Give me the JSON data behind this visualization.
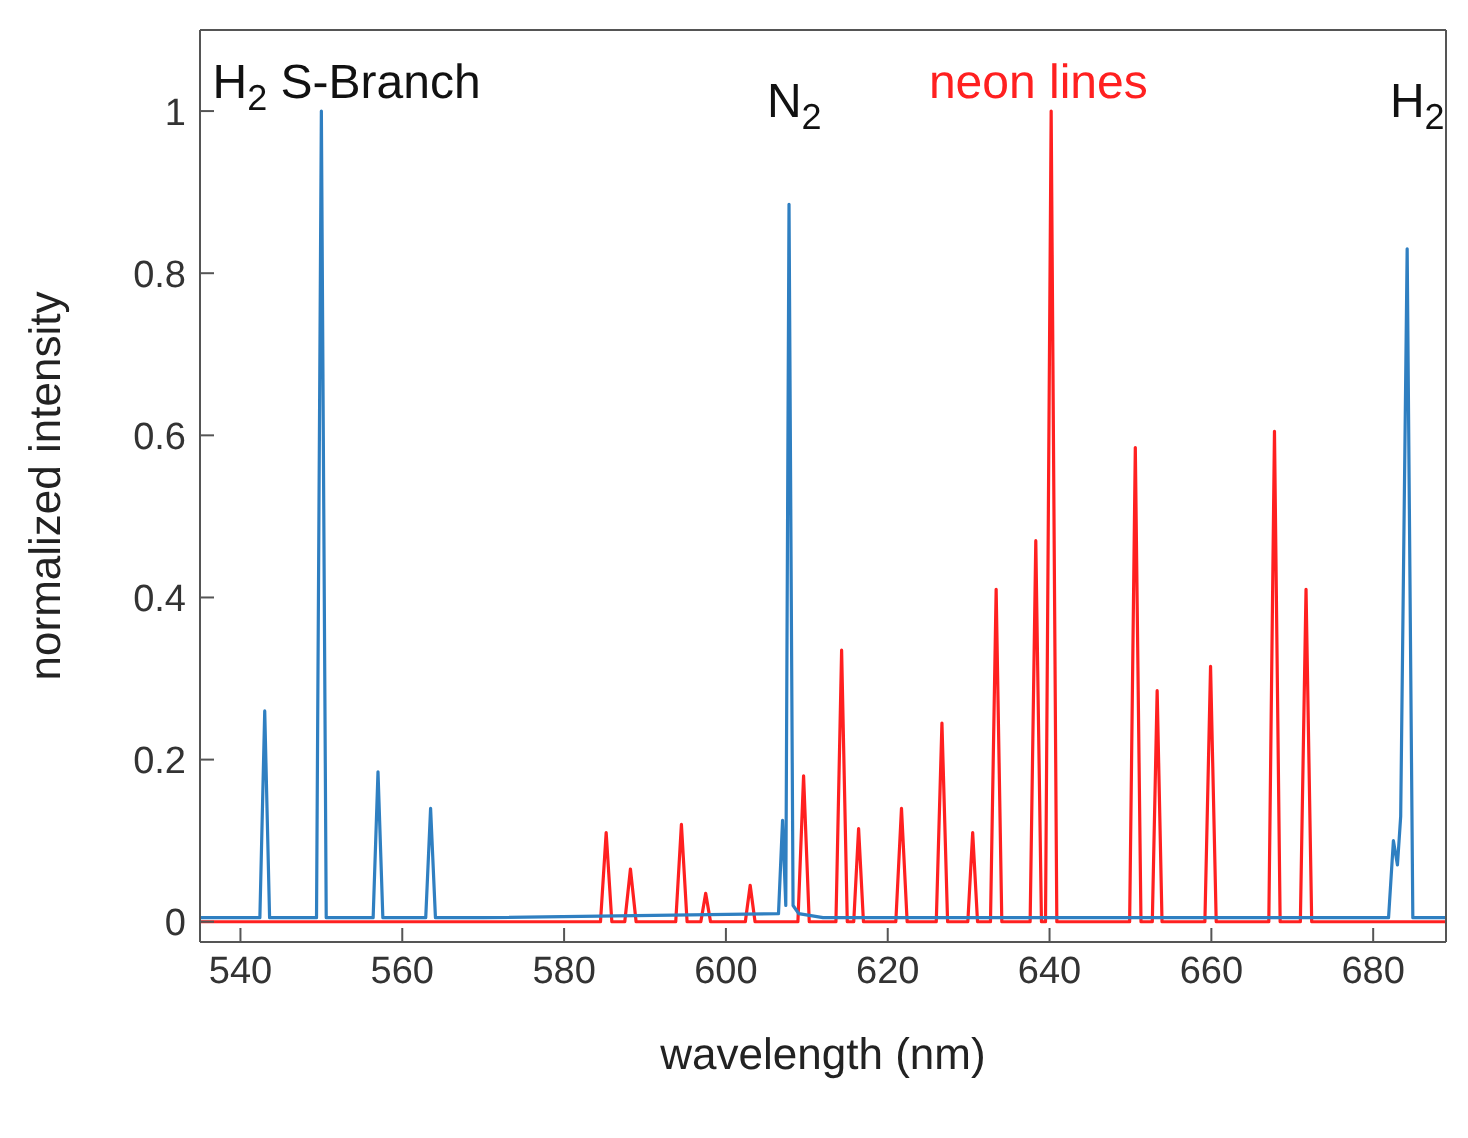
{
  "chart_data": {
    "type": "line",
    "xlabel": "wavelength (nm)",
    "ylabel": "normalized intensity",
    "xlim": [
      535,
      689
    ],
    "ylim": [
      -0.025,
      1.1
    ],
    "xticks": [
      540,
      560,
      580,
      600,
      620,
      640,
      660,
      680
    ],
    "yticks": [
      0,
      0.2,
      0.4,
      0.6,
      0.8,
      1
    ],
    "marker": "none",
    "line_style": "solid",
    "annotations": [
      "H$_{2}$ S-Branch",
      "N$_{2}$",
      "neon lines",
      "H$_{2}$"
    ],
    "series": [
      {
        "color": "#ff2020",
        "x": [
          535,
          584.5,
          585.2,
          585.9,
          587.5,
          588.2,
          588.9,
          593.8,
          594.5,
          595.2,
          596.9,
          597.5,
          598.1,
          602.4,
          603,
          603.6,
          608.9,
          609.6,
          610.3,
          613.6,
          614.3,
          615,
          615.8,
          616.4,
          617,
          621,
          621.7,
          622.4,
          626,
          626.7,
          627.4,
          629.9,
          630.5,
          631.1,
          632.7,
          633.4,
          634.1,
          637.6,
          638.3,
          639,
          639.5,
          640.2,
          640.9,
          649.9,
          650.6,
          651.3,
          652.7,
          653.3,
          653.9,
          659.2,
          659.9,
          660.6,
          667.1,
          667.8,
          668.5,
          671,
          671.7,
          672.4,
          689
        ],
        "values": [
          0,
          0,
          0.11,
          0,
          0,
          0.065,
          0,
          0,
          0.12,
          0,
          0,
          0.035,
          0,
          0,
          0.045,
          0,
          0,
          0.18,
          0,
          0,
          0.335,
          0,
          0,
          0.115,
          0,
          0,
          0.14,
          0,
          0,
          0.245,
          0,
          0,
          0.11,
          0,
          0,
          0.41,
          0,
          0,
          0.47,
          0,
          0,
          1,
          0,
          0,
          0.585,
          0,
          0,
          0.285,
          0,
          0,
          0.315,
          0,
          0,
          0.605,
          0,
          0,
          0.41,
          0,
          0
        ]
      },
      {
        "color": "#2f7fc1",
        "x": [
          535,
          542.4,
          543,
          543.6,
          549.4,
          550,
          550.6,
          556.4,
          557,
          557.6,
          562.9,
          563.5,
          564.1,
          570,
          606.5,
          607,
          607.4,
          607.8,
          608.3,
          609,
          612,
          681.9,
          682.5,
          683,
          683.4,
          684.2,
          684.9,
          689
        ],
        "values": [
          0.005,
          0.005,
          0.26,
          0.005,
          0.005,
          1,
          0.005,
          0.005,
          0.185,
          0.005,
          0.005,
          0.14,
          0.005,
          0.005,
          0.01,
          0.125,
          0.02,
          0.885,
          0.02,
          0.01,
          0.005,
          0.005,
          0.1,
          0.07,
          0.13,
          0.83,
          0.005,
          0.005
        ]
      }
    ]
  }
}
